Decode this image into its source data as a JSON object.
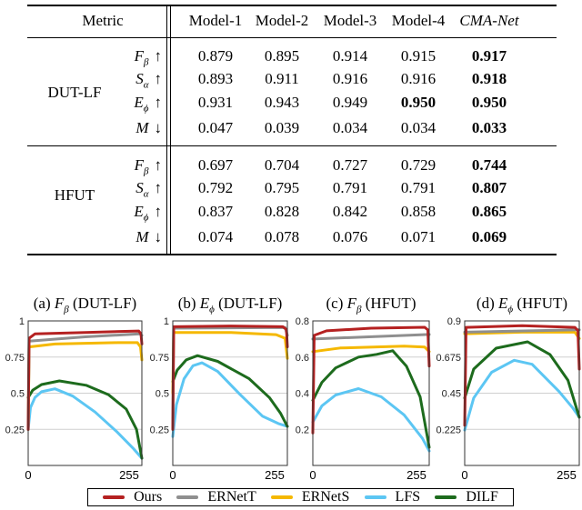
{
  "table": {
    "header": {
      "metric": "Metric",
      "models": [
        "Model-1",
        "Model-2",
        "Model-3",
        "Model-4",
        "CMA-Net"
      ]
    },
    "groups": [
      {
        "name": "DUT-LF",
        "rows": [
          {
            "metric": {
              "base": "F",
              "sub": "β",
              "arrow": "↑"
            },
            "values": [
              "0.879",
              "0.895",
              "0.914",
              "0.915",
              "0.917"
            ],
            "bold": [
              4
            ]
          },
          {
            "metric": {
              "base": "S",
              "sub": "α",
              "arrow": "↑"
            },
            "values": [
              "0.893",
              "0.911",
              "0.916",
              "0.916",
              "0.918"
            ],
            "bold": [
              4
            ]
          },
          {
            "metric": {
              "base": "E",
              "sub": "ϕ",
              "arrow": "↑"
            },
            "values": [
              "0.931",
              "0.943",
              "0.949",
              "0.950",
              "0.950"
            ],
            "bold": [
              3,
              4
            ]
          },
          {
            "metric": {
              "base": "M",
              "sub": "",
              "arrow": "↓"
            },
            "values": [
              "0.047",
              "0.039",
              "0.034",
              "0.034",
              "0.033"
            ],
            "bold": [
              4
            ]
          }
        ]
      },
      {
        "name": "HFUT",
        "rows": [
          {
            "metric": {
              "base": "F",
              "sub": "β",
              "arrow": "↑"
            },
            "values": [
              "0.697",
              "0.704",
              "0.727",
              "0.729",
              "0.744"
            ],
            "bold": [
              4
            ]
          },
          {
            "metric": {
              "base": "S",
              "sub": "α",
              "arrow": "↑"
            },
            "values": [
              "0.792",
              "0.795",
              "0.791",
              "0.791",
              "0.807"
            ],
            "bold": [
              4
            ]
          },
          {
            "metric": {
              "base": "E",
              "sub": "ϕ",
              "arrow": "↑"
            },
            "values": [
              "0.837",
              "0.828",
              "0.842",
              "0.858",
              "0.865"
            ],
            "bold": [
              4
            ]
          },
          {
            "metric": {
              "base": "M",
              "sub": "",
              "arrow": "↓"
            },
            "values": [
              "0.074",
              "0.078",
              "0.076",
              "0.071",
              "0.069"
            ],
            "bold": [
              4
            ]
          }
        ]
      }
    ]
  },
  "legend": [
    {
      "name": "Ours",
      "color": "#b52121"
    },
    {
      "name": "ERNetT",
      "color": "#8f8f8f"
    },
    {
      "name": "ERNetS",
      "color": "#f5b800"
    },
    {
      "name": "LFS",
      "color": "#5cc6f3"
    },
    {
      "name": "DILF",
      "color": "#1d6b1d"
    }
  ],
  "chart_data": [
    {
      "type": "line",
      "title": {
        "prefix": "(a)",
        "base": "F",
        "sub": "β",
        "suffix": "(DUT-LF)"
      },
      "xlim": [
        0,
        255
      ],
      "ylim": [
        0,
        1
      ],
      "xticks": [
        "0",
        "255"
      ],
      "yticks": [
        {
          "v": 1,
          "label": "1"
        },
        {
          "v": 0.75,
          "label": "0.75"
        },
        {
          "v": 0.5,
          "label": "0.5"
        },
        {
          "v": 0.25,
          "label": "0.25"
        }
      ],
      "grid": true,
      "series": [
        {
          "name": "LFS",
          "points": [
            [
              0,
              0.25
            ],
            [
              5,
              0.4
            ],
            [
              15,
              0.47
            ],
            [
              30,
              0.51
            ],
            [
              60,
              0.53
            ],
            [
              100,
              0.48
            ],
            [
              150,
              0.37
            ],
            [
              200,
              0.23
            ],
            [
              235,
              0.12
            ],
            [
              255,
              0.05
            ]
          ]
        },
        {
          "name": "DILF",
          "points": [
            [
              0,
              0.47
            ],
            [
              10,
              0.52
            ],
            [
              30,
              0.56
            ],
            [
              70,
              0.585
            ],
            [
              130,
              0.555
            ],
            [
              180,
              0.49
            ],
            [
              220,
              0.39
            ],
            [
              243,
              0.25
            ],
            [
              255,
              0.05
            ]
          ]
        },
        {
          "name": "ERNetS",
          "points": [
            [
              0,
              0.25
            ],
            [
              2,
              0.82
            ],
            [
              60,
              0.84
            ],
            [
              200,
              0.85
            ],
            [
              245,
              0.85
            ],
            [
              252,
              0.82
            ],
            [
              255,
              0.73
            ]
          ]
        },
        {
          "name": "ERNetT",
          "points": [
            [
              0,
              0.25
            ],
            [
              2,
              0.86
            ],
            [
              128,
              0.89
            ],
            [
              250,
              0.91
            ],
            [
              255,
              0.9
            ]
          ]
        },
        {
          "name": "Ours",
          "points": [
            [
              0,
              0.25
            ],
            [
              2,
              0.88
            ],
            [
              15,
              0.91
            ],
            [
              128,
              0.92
            ],
            [
              248,
              0.93
            ],
            [
              253,
              0.91
            ],
            [
              255,
              0.84
            ]
          ]
        }
      ]
    },
    {
      "type": "line",
      "title": {
        "prefix": "(b)",
        "base": "E",
        "sub": "ϕ",
        "suffix": "(DUT-LF)"
      },
      "xlim": [
        0,
        255
      ],
      "ylim": [
        0,
        1
      ],
      "xticks": [
        "0",
        "255"
      ],
      "yticks": [
        {
          "v": 1,
          "label": "1"
        },
        {
          "v": 0.75,
          "label": "0.75"
        },
        {
          "v": 0.5,
          "label": "0.5"
        },
        {
          "v": 0.25,
          "label": "0.25"
        }
      ],
      "grid": true,
      "series": [
        {
          "name": "LFS",
          "points": [
            [
              0,
              0.2
            ],
            [
              8,
              0.42
            ],
            [
              25,
              0.6
            ],
            [
              45,
              0.69
            ],
            [
              65,
              0.71
            ],
            [
              100,
              0.65
            ],
            [
              150,
              0.49
            ],
            [
              200,
              0.34
            ],
            [
              235,
              0.29
            ],
            [
              255,
              0.27
            ]
          ]
        },
        {
          "name": "DILF",
          "points": [
            [
              0,
              0.58
            ],
            [
              10,
              0.66
            ],
            [
              30,
              0.73
            ],
            [
              55,
              0.76
            ],
            [
              100,
              0.72
            ],
            [
              170,
              0.6
            ],
            [
              215,
              0.47
            ],
            [
              240,
              0.36
            ],
            [
              255,
              0.27
            ]
          ]
        },
        {
          "name": "ERNetS",
          "points": [
            [
              0,
              0.5
            ],
            [
              2,
              0.92
            ],
            [
              128,
              0.92
            ],
            [
              230,
              0.905
            ],
            [
              250,
              0.88
            ],
            [
              255,
              0.74
            ]
          ]
        },
        {
          "name": "ERNetT",
          "points": [
            [
              0,
              0.25
            ],
            [
              2,
              0.95
            ],
            [
              250,
              0.955
            ],
            [
              255,
              0.9
            ]
          ]
        },
        {
          "name": "Ours",
          "points": [
            [
              0,
              0.25
            ],
            [
              2,
              0.96
            ],
            [
              128,
              0.965
            ],
            [
              245,
              0.96
            ],
            [
              253,
              0.94
            ],
            [
              255,
              0.82
            ]
          ]
        }
      ]
    },
    {
      "type": "line",
      "title": {
        "prefix": "(c)",
        "base": "F",
        "sub": "β",
        "suffix": "(HFUT)"
      },
      "xlim": [
        0,
        255
      ],
      "ylim": [
        0,
        0.8
      ],
      "xticks": [
        "0",
        "255"
      ],
      "yticks": [
        {
          "v": 0.8,
          "label": "0.8"
        },
        {
          "v": 0.6,
          "label": "0.6"
        },
        {
          "v": 0.4,
          "label": "0.4"
        },
        {
          "v": 0.2,
          "label": "0.2"
        }
      ],
      "grid": true,
      "series": [
        {
          "name": "LFS",
          "points": [
            [
              0,
              0.24
            ],
            [
              20,
              0.33
            ],
            [
              50,
              0.39
            ],
            [
              100,
              0.425
            ],
            [
              150,
              0.38
            ],
            [
              200,
              0.28
            ],
            [
              240,
              0.15
            ],
            [
              255,
              0.08
            ]
          ]
        },
        {
          "name": "DILF",
          "points": [
            [
              0,
              0.36
            ],
            [
              20,
              0.46
            ],
            [
              50,
              0.54
            ],
            [
              100,
              0.6
            ],
            [
              140,
              0.615
            ],
            [
              175,
              0.635
            ],
            [
              205,
              0.55
            ],
            [
              235,
              0.38
            ],
            [
              255,
              0.1
            ]
          ]
        },
        {
          "name": "ERNetS",
          "points": [
            [
              0,
              0.63
            ],
            [
              60,
              0.65
            ],
            [
              200,
              0.66
            ],
            [
              245,
              0.655
            ],
            [
              255,
              0.63
            ]
          ]
        },
        {
          "name": "ERNetT",
          "points": [
            [
              0,
              0.7
            ],
            [
              255,
              0.725
            ]
          ]
        },
        {
          "name": "Ours",
          "points": [
            [
              0,
              0.18
            ],
            [
              3,
              0.72
            ],
            [
              30,
              0.745
            ],
            [
              128,
              0.76
            ],
            [
              245,
              0.765
            ],
            [
              252,
              0.75
            ],
            [
              255,
              0.55
            ]
          ]
        }
      ]
    },
    {
      "type": "line",
      "title": {
        "prefix": "(d)",
        "base": "E",
        "sub": "ϕ",
        "suffix": "(HFUT)"
      },
      "xlim": [
        0,
        255
      ],
      "ylim": [
        0,
        0.9
      ],
      "xticks": [
        "0",
        "255"
      ],
      "yticks": [
        {
          "v": 0.9,
          "label": "0.9"
        },
        {
          "v": 0.675,
          "label": "0.675"
        },
        {
          "v": 0.45,
          "label": "0.45"
        },
        {
          "v": 0.225,
          "label": "0.225"
        }
      ],
      "grid": true,
      "series": [
        {
          "name": "LFS",
          "points": [
            [
              0,
              0.22
            ],
            [
              20,
              0.42
            ],
            [
              60,
              0.58
            ],
            [
              110,
              0.655
            ],
            [
              150,
              0.63
            ],
            [
              210,
              0.46
            ],
            [
              240,
              0.36
            ],
            [
              255,
              0.3
            ]
          ]
        },
        {
          "name": "DILF",
          "points": [
            [
              0,
              0.42
            ],
            [
              20,
              0.6
            ],
            [
              70,
              0.73
            ],
            [
              140,
              0.77
            ],
            [
              190,
              0.69
            ],
            [
              230,
              0.53
            ],
            [
              255,
              0.3
            ]
          ]
        },
        {
          "name": "ERNetS",
          "points": [
            [
              0,
              0.82
            ],
            [
              128,
              0.83
            ],
            [
              245,
              0.83
            ],
            [
              255,
              0.79
            ]
          ]
        },
        {
          "name": "ERNetT",
          "points": [
            [
              0,
              0.83
            ],
            [
              255,
              0.845
            ]
          ]
        },
        {
          "name": "Ours",
          "points": [
            [
              0,
              0.25
            ],
            [
              3,
              0.86
            ],
            [
              128,
              0.87
            ],
            [
              245,
              0.86
            ],
            [
              252,
              0.84
            ],
            [
              255,
              0.6
            ]
          ]
        }
      ]
    }
  ]
}
